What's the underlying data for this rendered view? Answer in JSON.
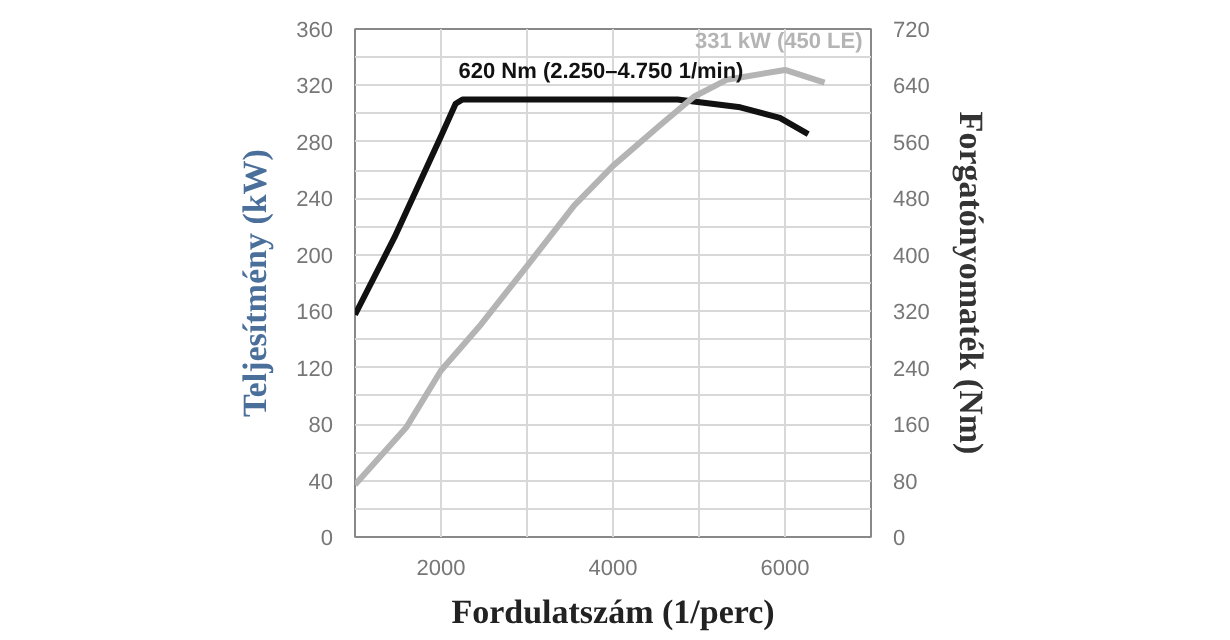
{
  "chart_data": {
    "type": "line",
    "xlabel": "Fordulatszám (1/perc)",
    "ylabel": "Teljesítmény (kW)",
    "y2label": "Forgatónyomaték (Nm)",
    "xlim": [
      1000,
      7000
    ],
    "xticks": [
      {
        "value": 1000,
        "label": null
      },
      2000,
      {
        "value": 3000,
        "label": null
      },
      4000,
      {
        "value": 5000,
        "label": null
      },
      6000,
      {
        "value": 7000,
        "label": null
      }
    ],
    "ylim": [
      0,
      360
    ],
    "yticks": [
      0,
      {
        "value": 20,
        "label": null
      },
      40,
      {
        "value": 60,
        "label": null
      },
      80,
      {
        "value": 100,
        "label": null
      },
      120,
      {
        "value": 140,
        "label": null
      },
      160,
      {
        "value": 180,
        "label": null
      },
      200,
      {
        "value": 220,
        "label": null
      },
      240,
      {
        "value": 260,
        "label": null
      },
      280,
      {
        "value": 300,
        "label": null
      },
      320,
      {
        "value": 340,
        "label": null
      },
      360
    ],
    "y2lim": [
      0,
      720
    ],
    "y2ticks": [
      0,
      80,
      160,
      240,
      320,
      400,
      480,
      560,
      640,
      720
    ],
    "grid": true,
    "line_style": "solid",
    "marker": "none",
    "series": [
      {
        "color": "#111111",
        "axis": "y2",
        "x": [
          1000,
          1460,
          2000,
          2170,
          2250,
          4750,
          5480,
          5940,
          6270
        ],
        "values": [
          315,
          425,
          568,
          614,
          620,
          620,
          609,
          594,
          571
        ]
      },
      {
        "color": "#b4b4b4",
        "axis": "y",
        "x": [
          1000,
          1600,
          2000,
          2470,
          3000,
          3550,
          4000,
          4550,
          4940,
          5320,
          6000,
          6460
        ],
        "values": [
          37,
          78,
          118,
          151,
          192,
          235,
          263,
          292,
          312,
          324,
          331,
          322
        ]
      }
    ],
    "annotations": [
      {
        "text": "620 Nm (2.250–4.750 1/min)",
        "x": 2250,
        "y": 310
      },
      {
        "text": "331 kW (450 LE)",
        "x": 6000,
        "y": 331
      }
    ]
  }
}
